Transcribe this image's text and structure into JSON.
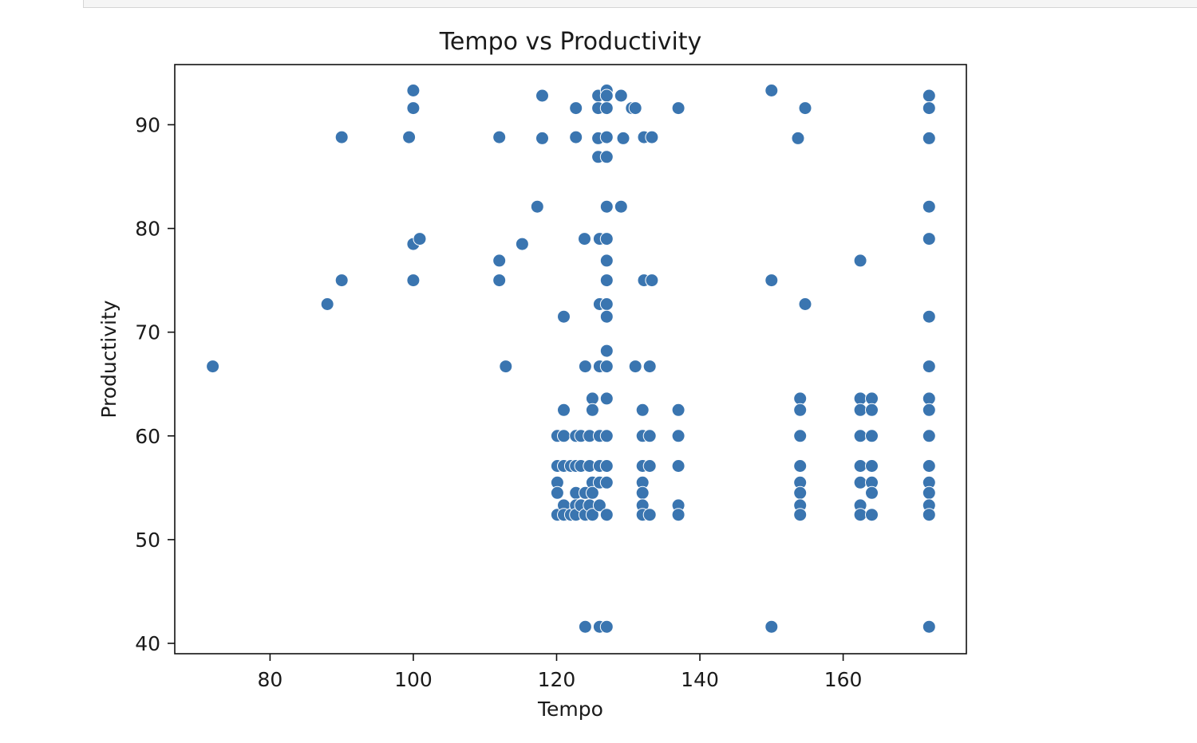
{
  "chart_data": {
    "type": "scatter",
    "title": "Tempo vs Productivity",
    "xlabel": "Tempo",
    "ylabel": "Productivity",
    "xlim": [
      66.7,
      177.2
    ],
    "ylim": [
      39.0,
      95.8
    ],
    "xticks": [
      80,
      100,
      120,
      140,
      160
    ],
    "yticks": [
      40,
      50,
      60,
      70,
      80,
      90
    ],
    "grid": false,
    "marker_color": "#3a75b0",
    "marker_edge": "#ffffff",
    "points": [
      {
        "x": 72,
        "y": 66.7
      },
      {
        "x": 88,
        "y": 72.7
      },
      {
        "x": 90,
        "y": 88.8
      },
      {
        "x": 90,
        "y": 75.0
      },
      {
        "x": 99.4,
        "y": 88.8
      },
      {
        "x": 100,
        "y": 93.3
      },
      {
        "x": 100,
        "y": 91.6
      },
      {
        "x": 100,
        "y": 78.5
      },
      {
        "x": 100.9,
        "y": 79.0
      },
      {
        "x": 100,
        "y": 75.0
      },
      {
        "x": 112,
        "y": 88.8
      },
      {
        "x": 112,
        "y": 76.9
      },
      {
        "x": 112,
        "y": 75.0
      },
      {
        "x": 112.9,
        "y": 66.7
      },
      {
        "x": 115.2,
        "y": 78.5
      },
      {
        "x": 117.3,
        "y": 82.1
      },
      {
        "x": 118,
        "y": 92.8
      },
      {
        "x": 118,
        "y": 88.7
      },
      {
        "x": 120.1,
        "y": 60.0
      },
      {
        "x": 120.1,
        "y": 57.1
      },
      {
        "x": 120.1,
        "y": 55.5
      },
      {
        "x": 120.1,
        "y": 54.5
      },
      {
        "x": 120.1,
        "y": 52.4
      },
      {
        "x": 121,
        "y": 71.5
      },
      {
        "x": 121,
        "y": 62.5
      },
      {
        "x": 121,
        "y": 60.0
      },
      {
        "x": 121,
        "y": 57.1
      },
      {
        "x": 121,
        "y": 53.3
      },
      {
        "x": 121,
        "y": 52.4
      },
      {
        "x": 122,
        "y": 57.1
      },
      {
        "x": 122,
        "y": 52.4
      },
      {
        "x": 122.7,
        "y": 91.6
      },
      {
        "x": 122.7,
        "y": 88.8
      },
      {
        "x": 122.7,
        "y": 60.0
      },
      {
        "x": 122.7,
        "y": 57.1
      },
      {
        "x": 122.7,
        "y": 54.5
      },
      {
        "x": 122.7,
        "y": 53.3
      },
      {
        "x": 122.7,
        "y": 52.4
      },
      {
        "x": 123.4,
        "y": 60.0
      },
      {
        "x": 123.4,
        "y": 57.1
      },
      {
        "x": 123.4,
        "y": 53.3
      },
      {
        "x": 123.9,
        "y": 79.0
      },
      {
        "x": 124,
        "y": 66.7
      },
      {
        "x": 124,
        "y": 54.5
      },
      {
        "x": 124,
        "y": 52.4
      },
      {
        "x": 124,
        "y": 41.6
      },
      {
        "x": 124.6,
        "y": 60.0
      },
      {
        "x": 124.6,
        "y": 57.1
      },
      {
        "x": 124.6,
        "y": 53.3
      },
      {
        "x": 125,
        "y": 63.6
      },
      {
        "x": 125,
        "y": 62.5
      },
      {
        "x": 125,
        "y": 55.5
      },
      {
        "x": 125,
        "y": 54.5
      },
      {
        "x": 125,
        "y": 52.4
      },
      {
        "x": 125.8,
        "y": 92.8
      },
      {
        "x": 125.8,
        "y": 91.6
      },
      {
        "x": 125.8,
        "y": 88.7
      },
      {
        "x": 125.8,
        "y": 86.9
      },
      {
        "x": 126,
        "y": 79.0
      },
      {
        "x": 126,
        "y": 72.7
      },
      {
        "x": 126,
        "y": 66.7
      },
      {
        "x": 126,
        "y": 60.0
      },
      {
        "x": 126,
        "y": 57.1
      },
      {
        "x": 126,
        "y": 55.5
      },
      {
        "x": 126,
        "y": 53.3
      },
      {
        "x": 126,
        "y": 41.6
      },
      {
        "x": 127,
        "y": 93.3
      },
      {
        "x": 127,
        "y": 92.8
      },
      {
        "x": 127,
        "y": 91.6
      },
      {
        "x": 127,
        "y": 88.8
      },
      {
        "x": 127,
        "y": 86.9
      },
      {
        "x": 127,
        "y": 82.1
      },
      {
        "x": 127,
        "y": 79.0
      },
      {
        "x": 127,
        "y": 76.9
      },
      {
        "x": 127,
        "y": 75.0
      },
      {
        "x": 127,
        "y": 72.7
      },
      {
        "x": 127,
        "y": 71.5
      },
      {
        "x": 127,
        "y": 68.2
      },
      {
        "x": 127,
        "y": 66.7
      },
      {
        "x": 127,
        "y": 63.6
      },
      {
        "x": 127,
        "y": 60.0
      },
      {
        "x": 127,
        "y": 57.1
      },
      {
        "x": 127,
        "y": 55.5
      },
      {
        "x": 127,
        "y": 52.4
      },
      {
        "x": 127,
        "y": 41.6
      },
      {
        "x": 129,
        "y": 92.8
      },
      {
        "x": 129,
        "y": 82.1
      },
      {
        "x": 129.3,
        "y": 88.7
      },
      {
        "x": 130.5,
        "y": 91.6
      },
      {
        "x": 131,
        "y": 91.6
      },
      {
        "x": 131,
        "y": 66.7
      },
      {
        "x": 132,
        "y": 62.5
      },
      {
        "x": 132,
        "y": 60.0
      },
      {
        "x": 132,
        "y": 57.1
      },
      {
        "x": 132,
        "y": 55.5
      },
      {
        "x": 132,
        "y": 54.5
      },
      {
        "x": 132,
        "y": 53.3
      },
      {
        "x": 132,
        "y": 52.4
      },
      {
        "x": 132.2,
        "y": 88.8
      },
      {
        "x": 132.2,
        "y": 75.0
      },
      {
        "x": 133,
        "y": 66.7
      },
      {
        "x": 133,
        "y": 60.0
      },
      {
        "x": 133,
        "y": 57.1
      },
      {
        "x": 133,
        "y": 52.4
      },
      {
        "x": 133.3,
        "y": 88.8
      },
      {
        "x": 133.3,
        "y": 75.0
      },
      {
        "x": 137,
        "y": 91.6
      },
      {
        "x": 137,
        "y": 62.5
      },
      {
        "x": 137,
        "y": 60.0
      },
      {
        "x": 137,
        "y": 57.1
      },
      {
        "x": 137,
        "y": 53.3
      },
      {
        "x": 137,
        "y": 52.4
      },
      {
        "x": 150,
        "y": 93.3
      },
      {
        "x": 150,
        "y": 75.0
      },
      {
        "x": 150,
        "y": 41.6
      },
      {
        "x": 153.7,
        "y": 88.7
      },
      {
        "x": 154,
        "y": 63.6
      },
      {
        "x": 154,
        "y": 62.5
      },
      {
        "x": 154,
        "y": 60.0
      },
      {
        "x": 154,
        "y": 57.1
      },
      {
        "x": 154,
        "y": 55.5
      },
      {
        "x": 154,
        "y": 54.5
      },
      {
        "x": 154,
        "y": 53.3
      },
      {
        "x": 154,
        "y": 52.4
      },
      {
        "x": 154.7,
        "y": 91.6
      },
      {
        "x": 154.7,
        "y": 72.7
      },
      {
        "x": 162.4,
        "y": 76.9
      },
      {
        "x": 162.4,
        "y": 63.6
      },
      {
        "x": 162.4,
        "y": 62.5
      },
      {
        "x": 162.4,
        "y": 60.0
      },
      {
        "x": 162.4,
        "y": 57.1
      },
      {
        "x": 162.4,
        "y": 55.5
      },
      {
        "x": 162.4,
        "y": 53.3
      },
      {
        "x": 162.4,
        "y": 52.4
      },
      {
        "x": 164,
        "y": 63.6
      },
      {
        "x": 164,
        "y": 62.5
      },
      {
        "x": 164,
        "y": 60.0
      },
      {
        "x": 164,
        "y": 57.1
      },
      {
        "x": 164,
        "y": 55.5
      },
      {
        "x": 164,
        "y": 54.5
      },
      {
        "x": 164,
        "y": 52.4
      },
      {
        "x": 172,
        "y": 92.8
      },
      {
        "x": 172,
        "y": 91.6
      },
      {
        "x": 172,
        "y": 88.7
      },
      {
        "x": 172,
        "y": 82.1
      },
      {
        "x": 172,
        "y": 79.0
      },
      {
        "x": 172,
        "y": 71.5
      },
      {
        "x": 172,
        "y": 66.7
      },
      {
        "x": 172,
        "y": 63.6
      },
      {
        "x": 172,
        "y": 62.5
      },
      {
        "x": 172,
        "y": 60.0
      },
      {
        "x": 172,
        "y": 57.1
      },
      {
        "x": 172,
        "y": 55.5
      },
      {
        "x": 172,
        "y": 54.5
      },
      {
        "x": 172,
        "y": 53.3
      },
      {
        "x": 172,
        "y": 52.4
      },
      {
        "x": 172,
        "y": 41.6
      }
    ]
  }
}
